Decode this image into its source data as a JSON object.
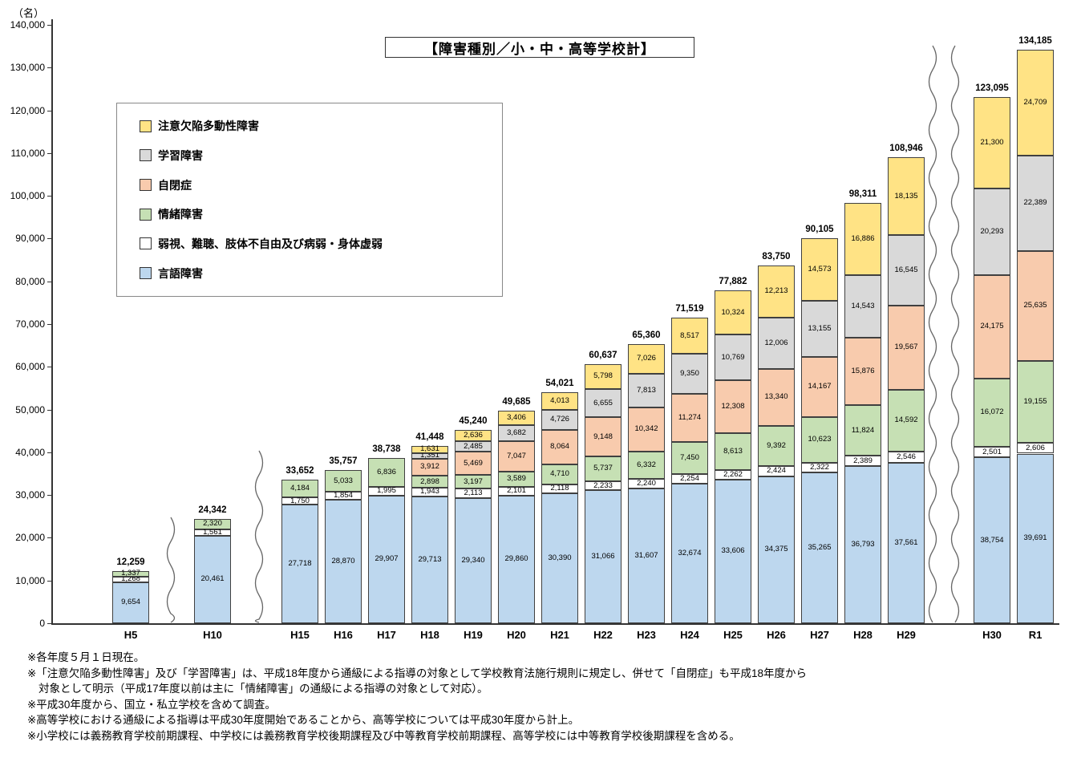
{
  "chart_data": {
    "type": "bar",
    "stacked": true,
    "title": "【障害種別／小・中・高等学校計】",
    "y_unit": "（名）",
    "ylim": [
      0,
      140000
    ],
    "ytick_step": 10000,
    "categories": [
      "H5",
      "H10",
      "H15",
      "H16",
      "H17",
      "H18",
      "H19",
      "H20",
      "H21",
      "H22",
      "H23",
      "H24",
      "H25",
      "H26",
      "H27",
      "H28",
      "H29",
      "H30",
      "R1"
    ],
    "series": [
      {
        "name": "言語障害",
        "color": "#BDD7EE",
        "values": [
          9654,
          20461,
          27718,
          28870,
          29907,
          29713,
          29340,
          29860,
          30390,
          31066,
          31607,
          32674,
          33606,
          34375,
          35265,
          36793,
          37561,
          38754,
          39691
        ]
      },
      {
        "name": "弱視、難聴、肢体不自由及び病弱・身体虚弱",
        "color": "#FFFFFF",
        "values": [
          1268,
          1561,
          1750,
          1854,
          1995,
          1943,
          2113,
          2101,
          2118,
          2233,
          2240,
          2254,
          2262,
          2424,
          2322,
          2389,
          2546,
          2501,
          2606
        ]
      },
      {
        "name": "情緒障害",
        "color": "#C6E0B4",
        "values": [
          1337,
          2320,
          4184,
          5033,
          6836,
          2898,
          3197,
          3589,
          4710,
          5737,
          6332,
          7450,
          8613,
          9392,
          10623,
          11824,
          14592,
          16072,
          19155
        ]
      },
      {
        "name": "自閉症",
        "color": "#F8CBAD",
        "values": [
          0,
          0,
          0,
          0,
          0,
          3912,
          5469,
          7047,
          8064,
          9148,
          10342,
          11274,
          12308,
          13340,
          14167,
          15876,
          19567,
          24175,
          25635
        ]
      },
      {
        "name": "学習障害",
        "color": "#D9D9D9",
        "values": [
          0,
          0,
          0,
          0,
          0,
          1351,
          2485,
          3682,
          4726,
          6655,
          7813,
          9350,
          10769,
          12006,
          13155,
          14543,
          16545,
          20293,
          22389
        ]
      },
      {
        "name": "注意欠陥多動性障害",
        "color": "#FFE385",
        "values": [
          0,
          0,
          0,
          0,
          0,
          1631,
          2636,
          3406,
          4013,
          5798,
          7026,
          8517,
          10324,
          12213,
          14573,
          16886,
          18135,
          21300,
          24709
        ]
      }
    ],
    "totals": [
      12259,
      24342,
      33652,
      35757,
      38738,
      41448,
      45240,
      49685,
      54021,
      60637,
      65360,
      71519,
      77882,
      83750,
      90105,
      98311,
      108946,
      123095,
      134185
    ],
    "legend_order": [
      "注意欠陥多動性障害",
      "学習障害",
      "自閉症",
      "情緒障害",
      "弱視、難聴、肢体不自由及び病弱・身体虚弱",
      "言語障害"
    ],
    "legend_position": "upper-left",
    "grid": false
  },
  "footnotes": [
    "※各年度５月１日現在。",
    "※「注意欠陥多動性障害」及び「学習障害」は、平成18年度から通級による指導の対象として学校教育法施行規則に規定し、併せて「自閉症」も平成18年度から",
    "対象として明示（平成17年度以前は主に「情緒障害」の通級による指導の対象として対応）。",
    "※平成30年度から、国立・私立学校を含めて調査。",
    "※高等学校における通級による指導は平成30年度開始であることから、高等学校については平成30年度から計上。",
    "※小学校には義務教育学校前期課程、中学校には義務教育学校後期課程及び中等教育学校前期課程、高等学校には中等教育学校後期課程を含める。"
  ]
}
